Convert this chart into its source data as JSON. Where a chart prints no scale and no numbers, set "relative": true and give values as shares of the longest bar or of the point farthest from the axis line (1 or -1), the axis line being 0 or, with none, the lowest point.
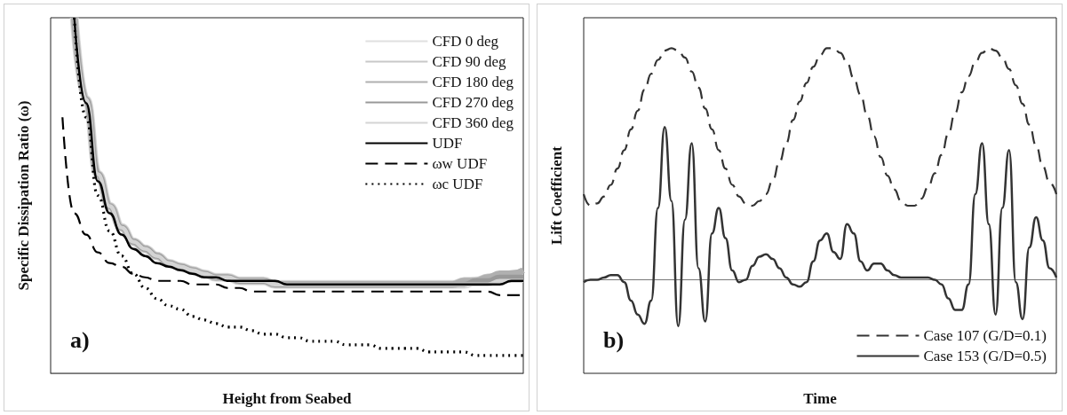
{
  "chart_data": [
    {
      "type": "line",
      "relative": true,
      "ylabel": "Specific Dissipation Ratio (ω)",
      "xlabel": "Height from Seabed",
      "annotations": [
        "a)"
      ],
      "legend": "top right",
      "marker": "none",
      "grid": false,
      "categories": [
        null,
        null,
        null,
        null,
        null,
        null,
        null,
        null,
        null,
        null,
        null,
        null,
        null,
        null,
        null,
        null,
        null,
        null,
        null,
        null,
        null,
        null,
        null,
        null,
        null,
        null,
        null,
        null,
        null,
        null,
        null,
        null,
        null,
        null,
        null,
        null,
        null,
        null,
        null,
        null,
        null
      ],
      "series": [
        {
          "name": "CFD 0 deg",
          "color": "#e0e0e0",
          "line_style": "solid",
          "values": [
            null,
            null,
            1,
            0.77,
            0.56,
            0.47,
            0.41,
            0.37,
            0.35,
            0.33,
            0.31,
            0.3,
            0.29,
            0.28,
            0.27,
            0.27,
            0.26,
            0.26,
            0.26,
            0.25,
            0.25,
            0.25,
            0.25,
            0.25,
            0.25,
            0.25,
            0.25,
            0.25,
            0.25,
            0.25,
            0.25,
            0.25,
            0.25,
            0.25,
            0.25,
            0.25,
            0.26,
            0.26,
            0.26,
            0.27,
            0.27
          ]
        },
        {
          "name": "CFD 90 deg",
          "color": "#c8c8c8",
          "line_style": "solid",
          "values": [
            null,
            null,
            1,
            0.77,
            0.56,
            0.47,
            0.41,
            0.37,
            0.35,
            0.33,
            0.31,
            0.3,
            0.29,
            0.28,
            0.27,
            0.27,
            0.26,
            0.26,
            0.26,
            0.25,
            0.25,
            0.25,
            0.25,
            0.25,
            0.25,
            0.25,
            0.25,
            0.25,
            0.25,
            0.25,
            0.25,
            0.25,
            0.25,
            0.25,
            0.25,
            0.26,
            0.26,
            0.27,
            0.27,
            0.28,
            0.28
          ]
        },
        {
          "name": "CFD 180 deg",
          "color": "#b0b0b0",
          "line_style": "solid",
          "values": [
            null,
            null,
            1,
            0.77,
            0.56,
            0.47,
            0.41,
            0.37,
            0.35,
            0.33,
            0.31,
            0.3,
            0.29,
            0.28,
            0.27,
            0.27,
            0.26,
            0.26,
            0.26,
            0.25,
            0.25,
            0.25,
            0.25,
            0.25,
            0.25,
            0.25,
            0.25,
            0.25,
            0.25,
            0.25,
            0.25,
            0.25,
            0.25,
            0.25,
            0.25,
            0.26,
            0.26,
            0.27,
            0.28,
            0.28,
            0.29
          ]
        },
        {
          "name": "CFD 270 deg",
          "color": "#999999",
          "line_style": "solid",
          "values": [
            null,
            null,
            1,
            0.77,
            0.56,
            0.47,
            0.41,
            0.37,
            0.35,
            0.33,
            0.31,
            0.3,
            0.29,
            0.28,
            0.27,
            0.27,
            0.26,
            0.26,
            0.26,
            0.25,
            0.25,
            0.25,
            0.25,
            0.25,
            0.25,
            0.25,
            0.25,
            0.25,
            0.25,
            0.25,
            0.25,
            0.25,
            0.25,
            0.25,
            0.25,
            0.25,
            0.26,
            0.26,
            0.27,
            0.27,
            0.27
          ]
        },
        {
          "name": "CFD 360 deg",
          "color": "#d4d4d4",
          "line_style": "solid",
          "values": [
            null,
            null,
            1,
            0.77,
            0.56,
            0.47,
            0.41,
            0.37,
            0.35,
            0.33,
            0.31,
            0.3,
            0.29,
            0.28,
            0.27,
            0.27,
            0.26,
            0.26,
            0.26,
            0.25,
            0.25,
            0.25,
            0.25,
            0.25,
            0.25,
            0.25,
            0.25,
            0.25,
            0.25,
            0.25,
            0.25,
            0.25,
            0.25,
            0.25,
            0.25,
            0.25,
            0.25,
            0.25,
            0.26,
            0.26,
            0.26
          ]
        },
        {
          "name": "UDF",
          "color": "#000000",
          "line_style": "solid",
          "values": [
            null,
            null,
            1,
            0.76,
            0.54,
            0.45,
            0.39,
            0.35,
            0.33,
            0.31,
            0.3,
            0.29,
            0.28,
            0.27,
            0.27,
            0.26,
            0.26,
            0.26,
            0.26,
            0.26,
            0.25,
            0.25,
            0.25,
            0.25,
            0.25,
            0.25,
            0.25,
            0.25,
            0.25,
            0.25,
            0.25,
            0.25,
            0.25,
            0.25,
            0.25,
            0.25,
            0.25,
            0.25,
            0.25,
            0.26,
            0.26
          ]
        },
        {
          "name": "ωw UDF",
          "color": "#000000",
          "line_style": "dashed",
          "values": [
            null,
            0.72,
            0.45,
            0.39,
            0.34,
            0.31,
            0.3,
            0.28,
            0.27,
            0.26,
            0.26,
            0.26,
            0.25,
            0.25,
            0.25,
            0.24,
            0.24,
            0.23,
            0.23,
            0.23,
            0.23,
            0.23,
            0.23,
            0.23,
            0.23,
            0.23,
            0.23,
            0.23,
            0.23,
            0.23,
            0.23,
            0.23,
            0.23,
            0.23,
            0.23,
            0.23,
            0.23,
            0.23,
            0.22,
            0.22,
            0.22
          ]
        },
        {
          "name": "ωc UDF",
          "color": "#000000",
          "line_style": "dotted",
          "values": [
            null,
            null,
            1,
            0.72,
            0.5,
            0.4,
            0.33,
            0.28,
            0.24,
            0.21,
            0.19,
            0.18,
            0.16,
            0.15,
            0.14,
            0.13,
            0.13,
            0.12,
            0.11,
            0.11,
            0.1,
            0.1,
            0.09,
            0.09,
            0.09,
            0.08,
            0.08,
            0.08,
            0.07,
            0.07,
            0.07,
            0.07,
            0.06,
            0.06,
            0.06,
            0.06,
            0.05,
            0.05,
            0.05,
            0.05,
            0.05
          ]
        }
      ]
    },
    {
      "type": "line",
      "relative": true,
      "ylabel": "Lift Coefficient",
      "xlabel": "Time",
      "annotations": [
        "b)"
      ],
      "legend": "bottom right",
      "marker": "none",
      "grid": false,
      "categories": [
        null,
        null,
        null,
        null,
        null,
        null,
        null,
        null,
        null,
        null,
        null,
        null,
        null,
        null,
        null,
        null,
        null,
        null,
        null,
        null,
        null,
        null,
        null,
        null,
        null,
        null,
        null,
        null,
        null,
        null,
        null,
        null,
        null,
        null,
        null,
        null,
        null,
        null,
        null,
        null,
        null,
        null,
        null,
        null,
        null,
        null,
        null,
        null,
        null,
        null,
        null,
        null,
        null,
        null,
        null,
        null,
        null,
        null,
        null,
        null,
        null,
        null,
        null,
        null,
        null,
        null,
        null,
        null,
        null,
        null,
        null
      ],
      "series": [
        {
          "name": "Case 107 (G/D=0.1)",
          "color": "#333333",
          "line_style": "dashed",
          "values": [
            0.37,
            0.32,
            0.33,
            0.36,
            0.41,
            0.48,
            0.56,
            0.65,
            0.73,
            0.82,
            0.89,
            0.95,
            0.99,
            1,
            0.99,
            0.96,
            0.9,
            0.83,
            0.74,
            0.65,
            0.56,
            0.48,
            0.41,
            0.36,
            0.33,
            0.32,
            0.34,
            0.37,
            0.43,
            0.51,
            0.59,
            0.69,
            0.77,
            0.85,
            0.92,
            0.97,
            1,
            1,
            0.98,
            0.94,
            0.87,
            0.8,
            0.71,
            0.62,
            0.53,
            0.45,
            0.39,
            0.34,
            0.32,
            0.32,
            0.35,
            0.4,
            0.46,
            0.54,
            0.63,
            0.72,
            0.81,
            0.88,
            0.94,
            0.98,
            1,
            0.99,
            0.96,
            0.91,
            0.84,
            0.76,
            0.67,
            0.58,
            0.49,
            0.42,
            0.37
          ]
        },
        {
          "name": "Case 153 (G/D=0.5)",
          "color": "#333333",
          "line_style": "solid",
          "values": [
            -0.01,
            0,
            0,
            0.01,
            0.02,
            0.02,
            -0.01,
            -0.09,
            -0.15,
            -0.19,
            -0.09,
            0.31,
            0.66,
            0.34,
            -0.2,
            0.26,
            0.59,
            0.05,
            -0.18,
            0.2,
            0.31,
            0.18,
            0.04,
            -0.01,
            0,
            0.06,
            0.1,
            0.11,
            0.09,
            0.05,
            0.01,
            -0.02,
            -0.03,
            -0.01,
            0.08,
            0.17,
            0.2,
            0.12,
            0.09,
            0.24,
            0.2,
            0.08,
            0.04,
            0.07,
            0.07,
            0.04,
            0.02,
            0.01,
            0.01,
            0.01,
            0.01,
            0.01,
            0,
            -0.02,
            -0.08,
            -0.13,
            -0.13,
            -0.02,
            0.37,
            0.59,
            0.24,
            -0.15,
            0.31,
            0.56,
            -0.01,
            -0.17,
            0.14,
            0.27,
            0.17,
            0.05,
            0.01
          ]
        }
      ]
    }
  ]
}
